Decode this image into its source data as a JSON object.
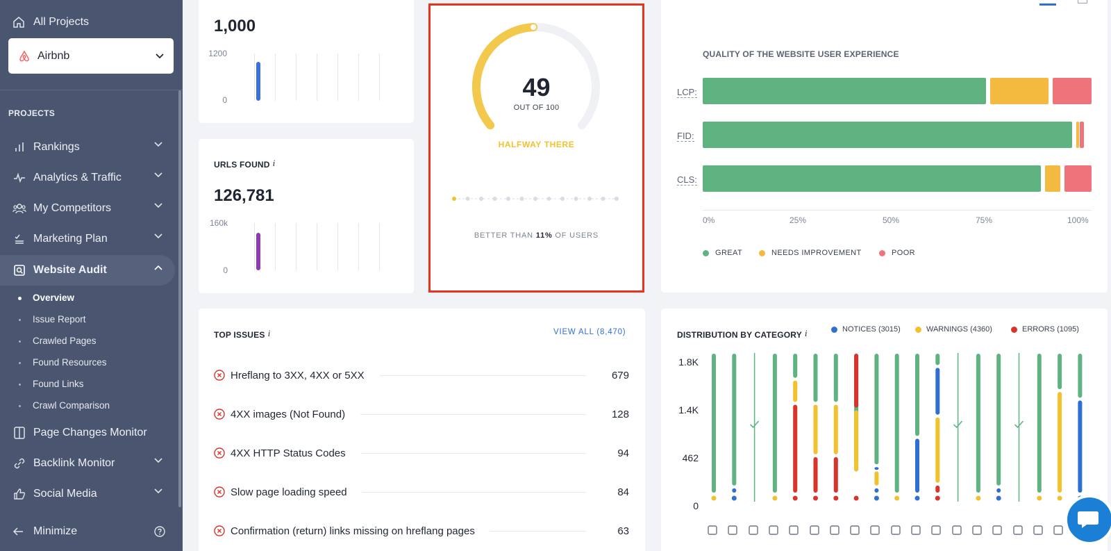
{
  "sidebar": {
    "all_projects": "All Projects",
    "project": "Airbnb",
    "projects_heading": "PROJECTS",
    "nav": [
      {
        "label": "Rankings",
        "icon": "bar-chart-icon"
      },
      {
        "label": "Analytics & Traffic",
        "icon": "pulse-icon"
      },
      {
        "label": "My Competitors",
        "icon": "users-icon"
      },
      {
        "label": "Marketing Plan",
        "icon": "checklist-icon"
      },
      {
        "label": "Website Audit",
        "icon": "audit-icon"
      }
    ],
    "sub": [
      "Overview",
      "Issue Report",
      "Crawled Pages",
      "Found Resources",
      "Found Links",
      "Crawl Comparison"
    ],
    "nav2": [
      {
        "label": "Page Changes Monitor",
        "icon": "page-changes-icon"
      },
      {
        "label": "Backlink Monitor",
        "icon": "link-icon"
      },
      {
        "label": "Social Media",
        "icon": "thumbs-up-icon"
      }
    ],
    "minimize": "Minimize"
  },
  "pages_card": {
    "value": "1,000",
    "y_max": "1200",
    "y_min": "0",
    "bar_fraction": 0.83,
    "bar_color": "#3a6fe0"
  },
  "urls_card": {
    "title": "URLS FOUND",
    "info": "i",
    "value": "126,781",
    "y_max": "160k",
    "y_min": "0",
    "bar_fraction": 0.79,
    "bar_color": "#8e3ab5"
  },
  "score": {
    "value": "49",
    "out_of": "OUT OF 100",
    "status": "HALFWAY THERE",
    "better_prefix": "BETTER THAN ",
    "better_pct": "11%",
    "better_suffix": " OF USERS",
    "percent": 49,
    "color": "#f2c94c"
  },
  "ux": {
    "title": "QUALITY OF THE WEBSITE USER EXPERIENCE",
    "metrics": [
      {
        "label": "LCP:",
        "great": 74,
        "needs": 16,
        "poor": 10
      },
      {
        "label": "FID:",
        "great": 96,
        "needs": 1,
        "poor": 1
      },
      {
        "label": "CLS:",
        "great": 88,
        "needs": 5,
        "poor": 7
      }
    ],
    "ticks": [
      "0%",
      "25%",
      "50%",
      "75%",
      "100%"
    ],
    "legend": [
      "GREAT",
      "NEEDS IMPROVEMENT",
      "POOR"
    ],
    "colors": {
      "great": "#5fb381",
      "needs": "#f4ba3f",
      "poor": "#ef737a"
    }
  },
  "top_issues": {
    "title": "TOP ISSUES",
    "info": "i",
    "view_all": "VIEW ALL (8,470)",
    "items": [
      {
        "label": "Hreflang to 3XX, 4XX or 5XX",
        "count": "679"
      },
      {
        "label": "4XX images (Not Found)",
        "count": "128"
      },
      {
        "label": "4XX HTTP Status Codes",
        "count": "94"
      },
      {
        "label": "Slow page loading speed",
        "count": "84"
      },
      {
        "label": "Confirmation (return) links missing on hreflang pages",
        "count": "63"
      }
    ]
  },
  "distribution": {
    "title": "DISTRIBUTION BY CATEGORY",
    "info": "i",
    "legend": [
      {
        "label": "NOTICES (3015)",
        "color": "#2f6fd2"
      },
      {
        "label": "WARNINGS (4360)",
        "color": "#f2c12e"
      },
      {
        "label": "ERRORS (1095)",
        "color": "#d9342b"
      }
    ],
    "y_labels": [
      "1.8K",
      "1.4K",
      "462",
      "0"
    ]
  }
}
